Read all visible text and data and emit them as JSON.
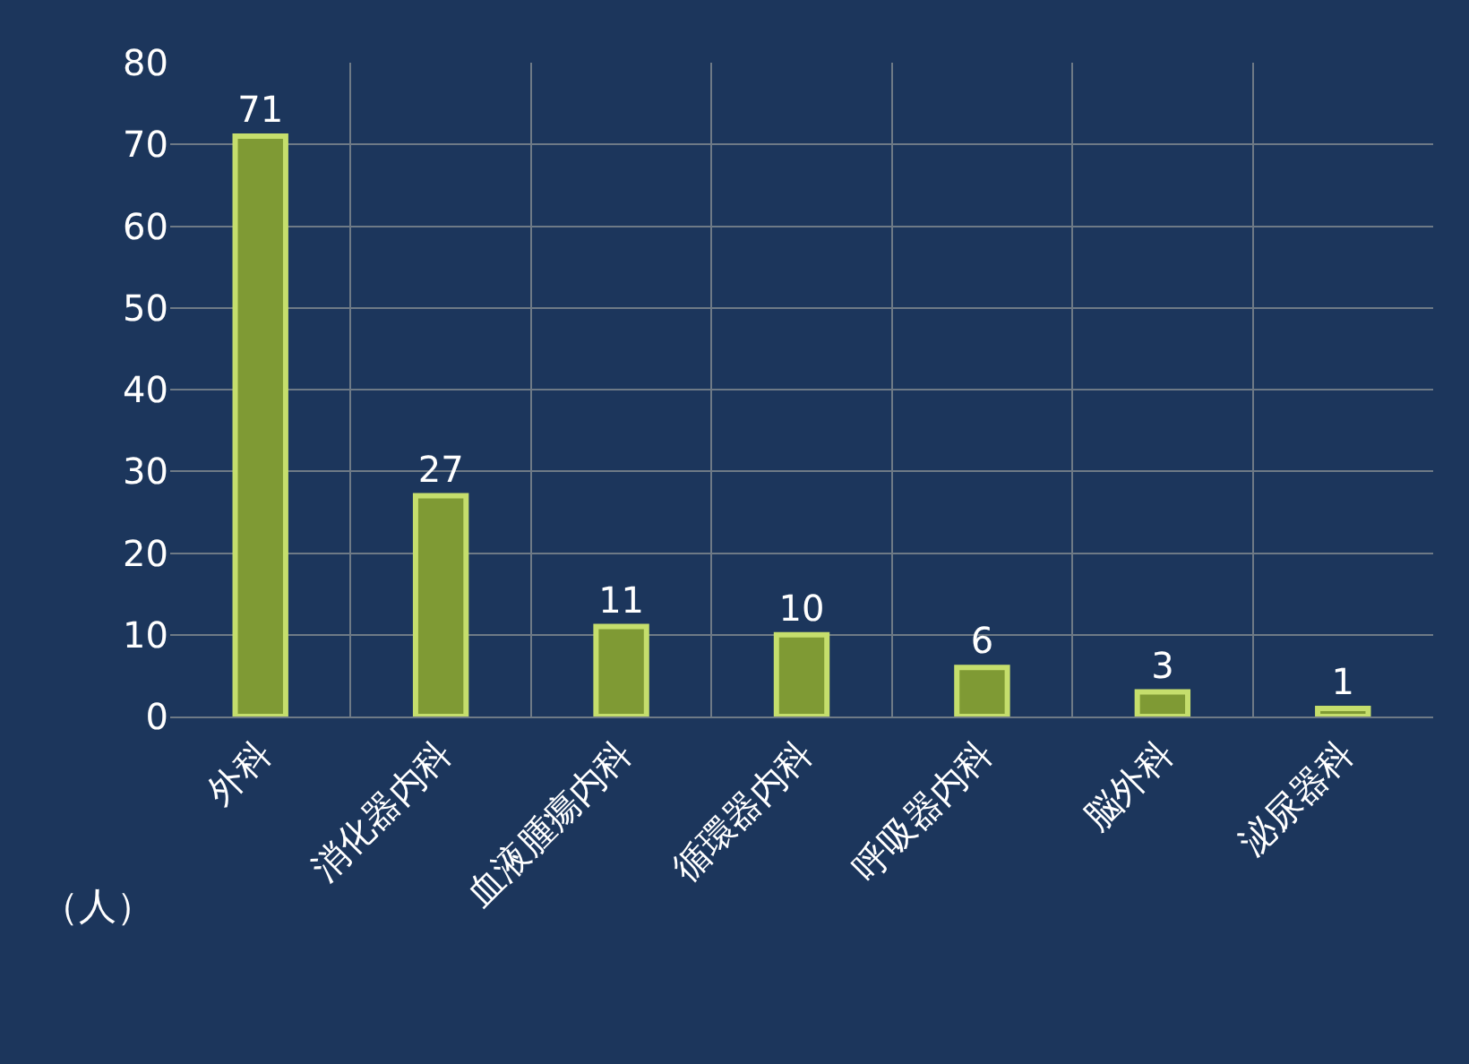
{
  "chart_data": {
    "type": "bar",
    "ylabel": "（人）",
    "categories": [
      "外科",
      "消化器内科",
      "血液腫瘍内科",
      "循環器内科",
      "呼吸器内科",
      "脳外科",
      "泌尿器科"
    ],
    "values": [
      71,
      27,
      11,
      10,
      6,
      3,
      1
    ],
    "color": "#7f9a34",
    "ylim": [
      0,
      80
    ],
    "yticks": [
      0,
      10,
      20,
      30,
      40,
      50,
      60,
      70,
      80
    ],
    "grid": true,
    "data_labels": true,
    "legend": false
  }
}
